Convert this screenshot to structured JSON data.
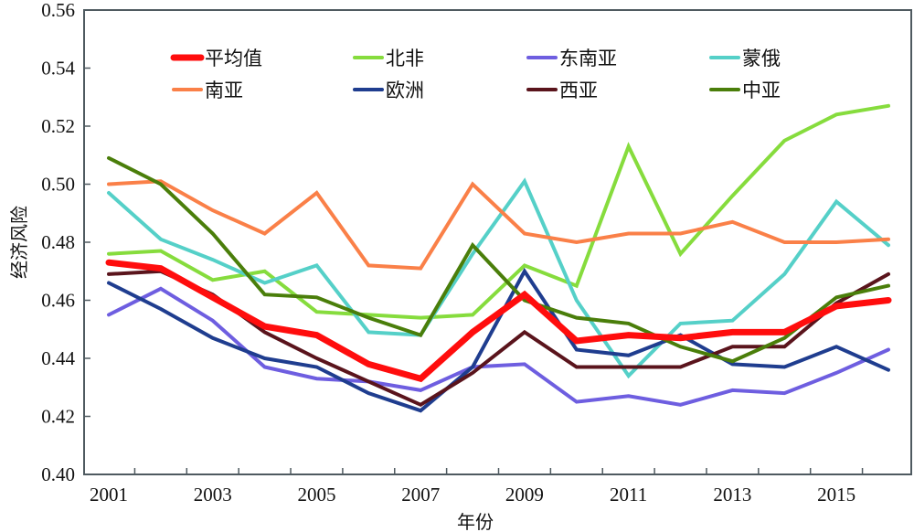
{
  "chart_data": {
    "type": "line",
    "title": "",
    "xlabel": "年份",
    "ylabel": "经济风险",
    "ylim": [
      0.4,
      0.56
    ],
    "yticks": [
      "0.40",
      "0.42",
      "0.44",
      "0.46",
      "0.48",
      "0.50",
      "0.52",
      "0.54",
      "0.56"
    ],
    "x": [
      2001,
      2002,
      2003,
      2004,
      2005,
      2006,
      2007,
      2008,
      2009,
      2010,
      2011,
      2012,
      2013,
      2014,
      2015,
      2016
    ],
    "xtick_labels": [
      "2001",
      "2003",
      "2005",
      "2007",
      "2009",
      "2011",
      "2013",
      "2015"
    ],
    "grid": false,
    "legend_position": "top",
    "series": [
      {
        "name": "平均值",
        "color": "#ff0d0d",
        "width": 7,
        "values": [
          0.473,
          0.471,
          0.461,
          0.451,
          0.448,
          0.438,
          0.433,
          0.449,
          0.462,
          0.446,
          0.448,
          0.447,
          0.449,
          0.449,
          0.458,
          0.46
        ]
      },
      {
        "name": "北非",
        "color": "#86dc3d",
        "width": 4,
        "values": [
          0.476,
          0.477,
          0.467,
          0.47,
          0.456,
          0.455,
          0.454,
          0.455,
          0.472,
          0.465,
          0.513,
          0.476,
          0.496,
          0.515,
          0.524,
          0.527
        ]
      },
      {
        "name": "东南亚",
        "color": "#6e5ee0",
        "width": 4,
        "values": [
          0.455,
          0.464,
          0.453,
          0.437,
          0.433,
          0.432,
          0.429,
          0.437,
          0.438,
          0.425,
          0.427,
          0.424,
          0.429,
          0.428,
          0.435,
          0.443
        ]
      },
      {
        "name": "蒙俄",
        "color": "#55d0c8",
        "width": 4,
        "values": [
          0.497,
          0.481,
          0.474,
          0.466,
          0.472,
          0.449,
          0.448,
          0.476,
          0.501,
          0.46,
          0.434,
          0.452,
          0.453,
          0.469,
          0.494,
          0.479
        ]
      },
      {
        "name": "南亚",
        "color": "#fa8048",
        "width": 4,
        "values": [
          0.5,
          0.501,
          0.491,
          0.483,
          0.497,
          0.472,
          0.471,
          0.5,
          0.483,
          0.48,
          0.483,
          0.483,
          0.487,
          0.48,
          0.48,
          0.481
        ]
      },
      {
        "name": "欧洲",
        "color": "#1f3d8f",
        "width": 4,
        "values": [
          0.466,
          0.457,
          0.447,
          0.44,
          0.437,
          0.428,
          0.422,
          0.437,
          0.47,
          0.443,
          0.441,
          0.448,
          0.438,
          0.437,
          0.444,
          0.436
        ]
      },
      {
        "name": "西亚",
        "color": "#5a141c",
        "width": 4,
        "values": [
          0.469,
          0.47,
          0.462,
          0.449,
          0.44,
          0.432,
          0.424,
          0.435,
          0.449,
          0.437,
          0.437,
          0.437,
          0.444,
          0.444,
          0.459,
          0.469
        ]
      },
      {
        "name": "中亚",
        "color": "#4a7e0a",
        "width": 4,
        "values": [
          0.509,
          0.5,
          0.483,
          0.462,
          0.461,
          0.454,
          0.448,
          0.479,
          0.46,
          0.454,
          0.452,
          0.444,
          0.439,
          0.447,
          0.461,
          0.465
        ]
      }
    ]
  }
}
